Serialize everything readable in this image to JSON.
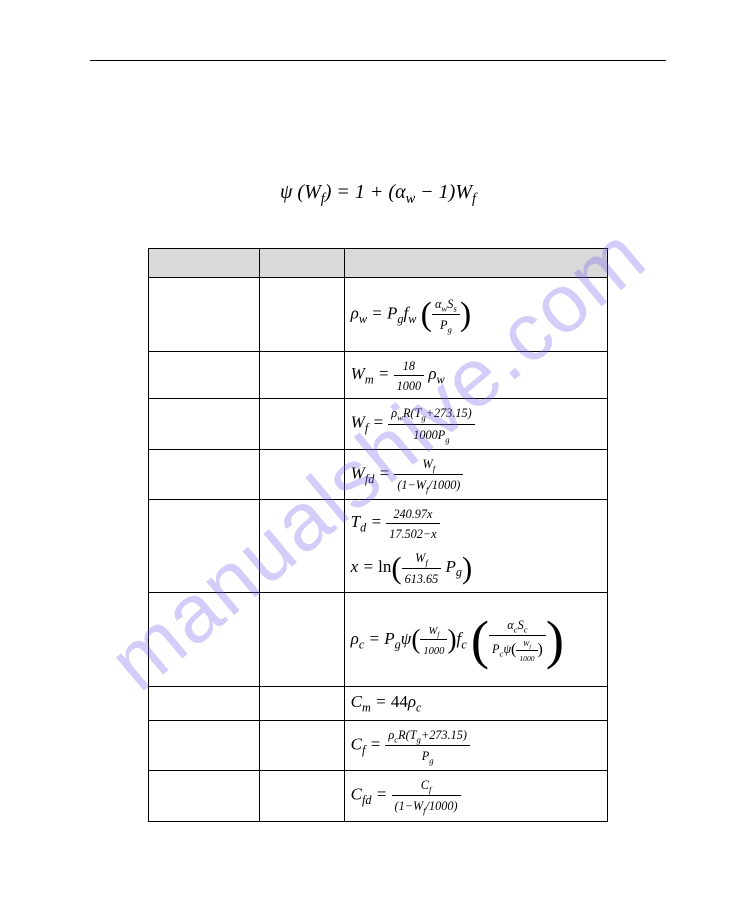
{
  "watermark_text": "manualshive.com",
  "watermark_color": "rgba(120,100,235,0.32)",
  "main_equation": {
    "lhs_sym": "ψ",
    "lhs_arg": "W",
    "lhs_arg_sub": "f",
    "rhs_a": "1",
    "rhs_b_sym": "α",
    "rhs_b_sub": "w",
    "rhs_c": "1",
    "rhs_d": "W",
    "rhs_d_sub": "f"
  },
  "table": {
    "header_cols": 3,
    "rows": [
      {
        "id": "rho_w",
        "cls": "tall",
        "lhs": {
          "sym": "ρ",
          "sub": "w"
        },
        "eq": "=",
        "terms": [
          {
            "sym": "P",
            "sub": "g"
          },
          {
            "sym": "f",
            "sub": "w"
          }
        ],
        "paren_frac": {
          "num": [
            {
              "sym": "α",
              "sub": "w"
            },
            {
              "sym": "S",
              "sub": "s"
            }
          ],
          "den": [
            {
              "sym": "P",
              "sub": "g"
            }
          ]
        }
      },
      {
        "id": "W_m",
        "cls": "med",
        "lhs": {
          "sym": "W",
          "sub": "m"
        },
        "eq": "=",
        "frac": {
          "num_txt": "18",
          "den_txt": "1000"
        },
        "tail": [
          {
            "sym": "ρ",
            "sub": "w"
          }
        ]
      },
      {
        "id": "W_f",
        "cls": "med",
        "lhs": {
          "sym": "W",
          "sub": "f"
        },
        "eq": "=",
        "frac": {
          "num": [
            {
              "sym": "ρ",
              "sub": "w"
            },
            {
              "txt": "R("
            },
            {
              "sym": "T",
              "sub": "g"
            },
            {
              "txt": "+273.15)"
            }
          ],
          "den_txt": "1000",
          "den_tail": [
            {
              "sym": "P",
              "sub": "g"
            }
          ]
        }
      },
      {
        "id": "W_fd",
        "cls": "med",
        "lhs": {
          "sym": "W",
          "sub": "fd"
        },
        "eq": "=",
        "frac": {
          "num": [
            {
              "sym": "W",
              "sub": "f"
            }
          ],
          "den_txt_pre": "(1−",
          "den_mid": [
            {
              "sym": "W",
              "sub": "f"
            }
          ],
          "den_txt_post": "/1000)"
        }
      },
      {
        "id": "T_d",
        "cls": "tall",
        "line1": {
          "lhs": {
            "sym": "T",
            "sub": "d"
          },
          "eq": "=",
          "frac": {
            "num_txt": "240.97x",
            "den_txt": "17.502−x"
          }
        },
        "line2": {
          "lhs_txt": "x",
          "eq": "=",
          "fn": "ln",
          "paren_frac": {
            "num": [
              {
                "sym": "W",
                "sub": "f"
              }
            ],
            "den_txt": "613.65"
          },
          "tail": [
            {
              "sym": "P",
              "sub": "g"
            }
          ]
        }
      },
      {
        "id": "rho_c",
        "cls": "xtall",
        "lhs": {
          "sym": "ρ",
          "sub": "c"
        },
        "eq": "=",
        "terms": [
          {
            "sym": "P",
            "sub": "g"
          }
        ],
        "psi_group": {
          "psi": "ψ",
          "inner_frac": {
            "num": [
              {
                "sym": "W",
                "sub": "f"
              }
            ],
            "den_txt": "1000"
          }
        },
        "fc": {
          "sym": "f",
          "sub": "c"
        },
        "big_paren_frac": {
          "num": [
            {
              "sym": "α",
              "sub": "c"
            },
            {
              "sym": "S",
              "sub": "c"
            }
          ],
          "den_lead": [
            {
              "sym": "P",
              "sub": "c"
            }
          ],
          "den_psi": "ψ",
          "den_inner_frac": {
            "num": [
              {
                "sym": "W",
                "sub": "f"
              }
            ],
            "den_txt": "1000"
          }
        }
      },
      {
        "id": "C_m",
        "cls": "short",
        "lhs": {
          "sym": "C",
          "sub": "m"
        },
        "eq": "=",
        "txt": "44",
        "tail": [
          {
            "sym": "ρ",
            "sub": "c"
          }
        ]
      },
      {
        "id": "C_f",
        "cls": "med",
        "lhs": {
          "sym": "C",
          "sub": "f"
        },
        "eq": "=",
        "frac": {
          "num": [
            {
              "sym": "ρ",
              "sub": "c"
            },
            {
              "txt": "R("
            },
            {
              "sym": "T",
              "sub": "g"
            },
            {
              "txt": "+273.15)"
            }
          ],
          "den": [
            {
              "sym": "P",
              "sub": "g"
            }
          ]
        }
      },
      {
        "id": "C_fd",
        "cls": "med",
        "lhs": {
          "sym": "C",
          "sub": "fd"
        },
        "eq": "=",
        "frac": {
          "num": [
            {
              "sym": "C",
              "sub": "f"
            }
          ],
          "den_txt_pre": "(1−",
          "den_mid": [
            {
              "sym": "W",
              "sub": "f"
            }
          ],
          "den_txt_post": "/1000)"
        }
      }
    ]
  }
}
